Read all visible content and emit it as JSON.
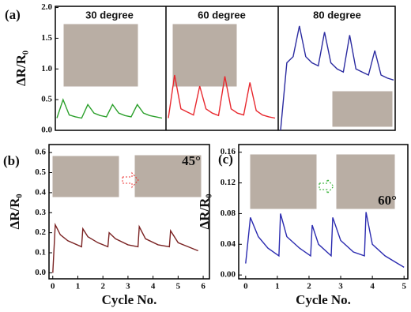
{
  "chart_data": [
    {
      "type": "line",
      "panel_label": "(a)",
      "y_label": "ΔR/R₀",
      "ylim": [
        0,
        2.02
      ],
      "yticks": [
        {
          "value": 0,
          "label": "0.0"
        },
        {
          "value": 0.5,
          "label": "0.5"
        },
        {
          "value": 1,
          "label": "1.0"
        },
        {
          "value": 1.5,
          "label": "1.5"
        },
        {
          "value": 2,
          "label": "2.0"
        }
      ],
      "series": [
        {
          "name": "30 degree",
          "color": "#2ca02c",
          "values": [
            0.2,
            0.5,
            0.25,
            0.22,
            0.2,
            0.42,
            0.28,
            0.24,
            0.22,
            0.42,
            0.28,
            0.24,
            0.22,
            0.42,
            0.28,
            0.24,
            0.22,
            0.2
          ]
        },
        {
          "name": "60 degree",
          "color": "#e8282e",
          "values": [
            0.2,
            0.9,
            0.35,
            0.3,
            0.25,
            0.72,
            0.35,
            0.28,
            0.24,
            0.88,
            0.35,
            0.28,
            0.25,
            0.78,
            0.32,
            0.25,
            0.22,
            0.2
          ]
        },
        {
          "name": "80 degree",
          "color": "#2b2ba0",
          "values": [
            0.0,
            1.1,
            1.2,
            1.7,
            1.2,
            1.1,
            1.05,
            1.6,
            1.1,
            1.0,
            0.95,
            1.55,
            1.0,
            0.95,
            0.9,
            1.3,
            0.9,
            0.85,
            0.82
          ]
        }
      ]
    },
    {
      "type": "line",
      "panel_label": "(b)",
      "x_label": "Cycle No.",
      "y_label": "ΔR/R₀",
      "annotation": "45°",
      "xlim": [
        -0.15,
        6.25
      ],
      "xticks": [
        0,
        1,
        2,
        3,
        4,
        5,
        6
      ],
      "ylim": [
        -0.03,
        0.64
      ],
      "yticks": [
        {
          "value": 0,
          "label": "0.0"
        },
        {
          "value": 0.1,
          "label": "0.1"
        },
        {
          "value": 0.2,
          "label": "0.2"
        },
        {
          "value": 0.3,
          "label": "0.3"
        },
        {
          "value": 0.4,
          "label": "0.4"
        },
        {
          "value": 0.5,
          "label": "0.5"
        },
        {
          "value": 0.6,
          "label": "0.6"
        }
      ],
      "series": [
        {
          "color": "#7a2222",
          "x": [
            0,
            0.1,
            0.3,
            0.6,
            1.15,
            1.2,
            1.4,
            1.8,
            2.2,
            2.25,
            2.5,
            3.0,
            3.4,
            3.45,
            3.7,
            4.2,
            4.65,
            4.7,
            5.0,
            5.4,
            5.8
          ],
          "values": [
            0,
            0.24,
            0.19,
            0.16,
            0.13,
            0.22,
            0.18,
            0.15,
            0.13,
            0.2,
            0.17,
            0.14,
            0.13,
            0.23,
            0.17,
            0.14,
            0.13,
            0.21,
            0.15,
            0.13,
            0.11
          ]
        }
      ]
    },
    {
      "type": "line",
      "panel_label": "(c)",
      "x_label": "Cycle No.",
      "y_label": "ΔR/R₀",
      "annotation": "60°",
      "xlim": [
        -0.22,
        5.12
      ],
      "xticks": [
        0,
        1,
        2,
        3,
        4,
        5
      ],
      "ylim": [
        -0.005,
        0.17
      ],
      "yticks": [
        {
          "value": 0,
          "label": "0.00"
        },
        {
          "value": 0.04,
          "label": "0.04"
        },
        {
          "value": 0.08,
          "label": "0.08"
        },
        {
          "value": 0.12,
          "label": "0.12"
        },
        {
          "value": 0.16,
          "label": "0.16"
        }
      ],
      "series": [
        {
          "color": "#2b2bb0",
          "x": [
            0,
            0.15,
            0.4,
            0.7,
            1.05,
            1.1,
            1.3,
            1.7,
            2.05,
            2.1,
            2.3,
            2.7,
            2.75,
            3.0,
            3.4,
            3.75,
            3.8,
            4.0,
            4.4,
            4.8,
            5.0
          ],
          "values": [
            0.015,
            0.075,
            0.05,
            0.035,
            0.025,
            0.08,
            0.05,
            0.035,
            0.025,
            0.065,
            0.04,
            0.025,
            0.075,
            0.045,
            0.03,
            0.025,
            0.082,
            0.04,
            0.025,
            0.015,
            0.01
          ]
        }
      ]
    }
  ]
}
